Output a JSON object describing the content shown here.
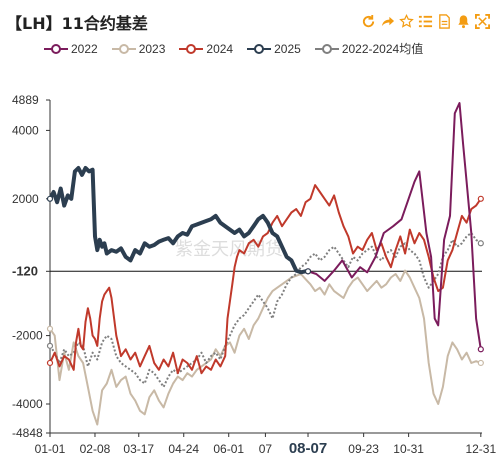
{
  "title": "【LH】11合约基差",
  "toolbar": {
    "icons": [
      "refresh-icon",
      "share-icon",
      "star-icon",
      "list-icon",
      "document-icon",
      "bell-icon",
      "expand-icon"
    ],
    "accent": "#f39c12"
  },
  "legend": [
    {
      "name": "2022",
      "color": "#7b1c5c"
    },
    {
      "name": "2023",
      "color": "#c8b9a6"
    },
    {
      "name": "2024",
      "color": "#c0392b"
    },
    {
      "name": "2025",
      "color": "#2c3e50"
    },
    {
      "name": "2022-2024均值",
      "color": "#7f7f7f"
    }
  ],
  "watermark": "紫金天风期货",
  "chart_data": {
    "type": "line",
    "title": "【LH】11合约基差",
    "ylim": [
      -4848,
      4889
    ],
    "ytick_labels": [
      "4889",
      "4000",
      "2000",
      "-120",
      "-2000",
      "-4000",
      "-4848"
    ],
    "yticks": [
      4889,
      4000,
      2000,
      -120,
      -2000,
      -4000,
      -4848
    ],
    "highlight_y": -120,
    "xtick_labels": [
      "01-01",
      "02-08",
      "03-17",
      "04-24",
      "06-01",
      "07",
      "08-07",
      "09-23",
      "10-31",
      "12-31"
    ],
    "highlight_x": "08-07",
    "x_range_days": [
      0,
      365
    ],
    "xtick_days": [
      0,
      38,
      75,
      113,
      151,
      182,
      218,
      265,
      303,
      364
    ],
    "series": [
      {
        "name": "2022",
        "color": "#7b1c5c",
        "x": [
          218,
          225,
          232,
          240,
          247,
          255,
          262,
          268,
          275,
          282,
          290,
          297,
          303,
          308,
          312,
          318,
          322,
          325,
          328,
          333,
          338,
          342,
          346,
          349,
          352,
          356,
          360,
          364
        ],
        "values": [
          -120,
          -200,
          -400,
          -100,
          200,
          -300,
          0,
          -150,
          300,
          1000,
          1200,
          1400,
          2000,
          2500,
          2800,
          1000,
          300,
          -1500,
          -1700,
          800,
          1500,
          4500,
          4800,
          3600,
          2500,
          1000,
          -1500,
          -2400
        ]
      },
      {
        "name": "2023",
        "color": "#c8b9a6",
        "x": [
          0,
          4,
          8,
          12,
          16,
          20,
          24,
          28,
          32,
          36,
          40,
          44,
          48,
          52,
          56,
          60,
          64,
          68,
          72,
          76,
          80,
          84,
          88,
          92,
          96,
          100,
          104,
          108,
          112,
          116,
          120,
          124,
          128,
          132,
          136,
          140,
          144,
          148,
          152,
          156,
          160,
          164,
          168,
          172,
          176,
          180,
          184,
          188,
          192,
          196,
          200,
          204,
          208,
          212,
          216,
          220,
          224,
          228,
          232,
          236,
          240,
          244,
          248,
          252,
          256,
          260,
          264,
          268,
          272,
          276,
          280,
          284,
          288,
          292,
          296,
          300,
          304,
          308,
          312,
          316,
          320,
          324,
          328,
          332,
          336,
          340,
          344,
          348,
          352,
          356,
          360,
          364
        ],
        "values": [
          -1800,
          -2000,
          -3300,
          -2500,
          -3000,
          -2200,
          -2600,
          -2800,
          -3500,
          -4200,
          -4600,
          -3600,
          -3400,
          -3000,
          -3500,
          -3300,
          -3200,
          -3700,
          -3900,
          -4200,
          -4300,
          -3800,
          -3600,
          -3900,
          -4100,
          -3700,
          -3400,
          -3200,
          -3300,
          -3100,
          -3200,
          -3000,
          -2900,
          -2800,
          -2700,
          -2400,
          -2600,
          -2300,
          -2200,
          -2500,
          -2000,
          -1800,
          -2100,
          -1700,
          -1500,
          -1200,
          -900,
          -700,
          -600,
          -500,
          -400,
          -300,
          -250,
          -200,
          -350,
          -500,
          -700,
          -600,
          -800,
          -500,
          -700,
          -800,
          -900,
          -600,
          -400,
          -300,
          -500,
          -700,
          -550,
          -400,
          -600,
          -500,
          -300,
          -200,
          -400,
          -100,
          -300,
          -600,
          -900,
          -1500,
          -2800,
          -3700,
          -4000,
          -3500,
          -2600,
          -2200,
          -2400,
          -2700,
          -2500,
          -2800,
          -2750,
          -2800
        ]
      },
      {
        "name": "2024",
        "color": "#c0392b",
        "x": [
          0,
          4,
          8,
          12,
          16,
          20,
          22,
          24,
          26,
          28,
          30,
          32,
          34,
          36,
          38,
          40,
          42,
          44,
          46,
          48,
          50,
          52,
          56,
          60,
          64,
          68,
          72,
          76,
          80,
          84,
          88,
          92,
          96,
          100,
          104,
          108,
          112,
          116,
          120,
          124,
          128,
          132,
          136,
          140,
          144,
          148,
          150,
          152,
          154,
          156,
          158,
          160,
          164,
          168,
          172,
          176,
          180,
          184,
          188,
          192,
          196,
          200,
          204,
          208,
          212,
          216,
          220,
          224,
          228,
          232,
          236,
          240,
          244,
          248,
          252,
          256,
          260,
          264,
          268,
          272,
          276,
          280,
          284,
          288,
          292,
          296,
          300,
          304,
          308,
          312,
          316,
          320,
          324,
          328,
          332,
          336,
          340,
          344,
          348,
          352,
          356,
          360,
          364
        ],
        "values": [
          -2800,
          -2500,
          -2900,
          -2600,
          -2700,
          -3000,
          -2200,
          -1800,
          -2300,
          -2400,
          -1600,
          -1200,
          -1500,
          -2000,
          -2100,
          -2300,
          -1500,
          -1000,
          -800,
          -700,
          -600,
          -900,
          -2000,
          -2600,
          -2400,
          -2700,
          -2500,
          -2900,
          -2600,
          -2300,
          -2800,
          -3000,
          -2700,
          -2900,
          -2500,
          -3100,
          -2700,
          -2800,
          -3000,
          -2600,
          -3100,
          -2900,
          -3000,
          -2700,
          -2900,
          -2600,
          -1500,
          -1000,
          -500,
          0,
          300,
          500,
          400,
          700,
          800,
          600,
          900,
          1000,
          1300,
          1500,
          1200,
          1400,
          1600,
          1700,
          1500,
          1900,
          2000,
          2400,
          2200,
          2000,
          1800,
          2100,
          1600,
          1200,
          900,
          400,
          600,
          500,
          800,
          1000,
          500,
          700,
          300,
          0,
          500,
          900,
          400,
          1100,
          700,
          1000,
          800,
          300,
          -300,
          -700,
          -600,
          200,
          500,
          1000,
          1500,
          1300,
          1700,
          1800,
          2000
        ]
      },
      {
        "name": "2025",
        "color": "#2c3e50",
        "x": [
          0,
          3,
          6,
          9,
          12,
          15,
          18,
          21,
          24,
          27,
          30,
          33,
          36,
          38,
          40,
          42,
          44,
          46,
          48,
          52,
          56,
          60,
          64,
          68,
          72,
          76,
          80,
          84,
          88,
          92,
          96,
          100,
          104,
          108,
          112,
          116,
          120,
          124,
          128,
          132,
          136,
          140,
          144,
          148,
          152,
          156,
          160,
          164,
          168,
          172,
          176,
          180,
          184,
          188,
          192,
          196,
          200,
          204,
          208,
          212,
          216,
          218
        ],
        "values": [
          2000,
          2200,
          1900,
          2300,
          1800,
          2100,
          2000,
          2800,
          2900,
          2700,
          2900,
          2800,
          2850,
          900,
          500,
          800,
          600,
          700,
          400,
          500,
          450,
          550,
          300,
          200,
          500,
          400,
          700,
          600,
          650,
          750,
          800,
          850,
          700,
          900,
          1000,
          950,
          1200,
          1250,
          1300,
          1350,
          1400,
          1500,
          1300,
          1200,
          1100,
          1000,
          1100,
          900,
          1000,
          1200,
          1400,
          1500,
          1300,
          1000,
          900,
          600,
          300,
          200,
          -100,
          -150,
          -120,
          -120
        ]
      },
      {
        "name": "2022-2024均值",
        "color": "#7f7f7f",
        "x": [
          0,
          4,
          8,
          12,
          16,
          20,
          24,
          28,
          32,
          36,
          40,
          44,
          48,
          52,
          56,
          60,
          64,
          68,
          72,
          76,
          80,
          84,
          88,
          92,
          96,
          100,
          104,
          108,
          112,
          116,
          120,
          124,
          128,
          132,
          136,
          140,
          144,
          148,
          152,
          156,
          160,
          164,
          168,
          172,
          176,
          180,
          184,
          188,
          192,
          196,
          200,
          204,
          208,
          212,
          216,
          220,
          224,
          228,
          232,
          236,
          240,
          244,
          248,
          252,
          256,
          260,
          264,
          268,
          272,
          276,
          280,
          284,
          288,
          292,
          296,
          300,
          304,
          308,
          312,
          316,
          320,
          324,
          328,
          332,
          336,
          340,
          344,
          348,
          352,
          356,
          360,
          364
        ],
        "values": [
          -2300,
          -2500,
          -2800,
          -2400,
          -2600,
          -2500,
          -2200,
          -2300,
          -2900,
          -2500,
          -2700,
          -2200,
          -2000,
          -2100,
          -2600,
          -2800,
          -2900,
          -3000,
          -3100,
          -3300,
          -3400,
          -3000,
          -3100,
          -3300,
          -3500,
          -3200,
          -3000,
          -3100,
          -3000,
          -2900,
          -2800,
          -2700,
          -2500,
          -2800,
          -2600,
          -2500,
          -2700,
          -2300,
          -2000,
          -1700,
          -1500,
          -1400,
          -1200,
          -1000,
          -800,
          -1000,
          -1200,
          -1500,
          -1000,
          -800,
          -500,
          -300,
          -200,
          0,
          100,
          300,
          400,
          200,
          300,
          500,
          600,
          400,
          200,
          0,
          300,
          200,
          400,
          500,
          600,
          300,
          200,
          400,
          500,
          300,
          600,
          700,
          500,
          400,
          200,
          -300,
          -600,
          -400,
          -200,
          300,
          500,
          800,
          600,
          700,
          900,
          1000,
          800,
          700
        ]
      }
    ]
  }
}
